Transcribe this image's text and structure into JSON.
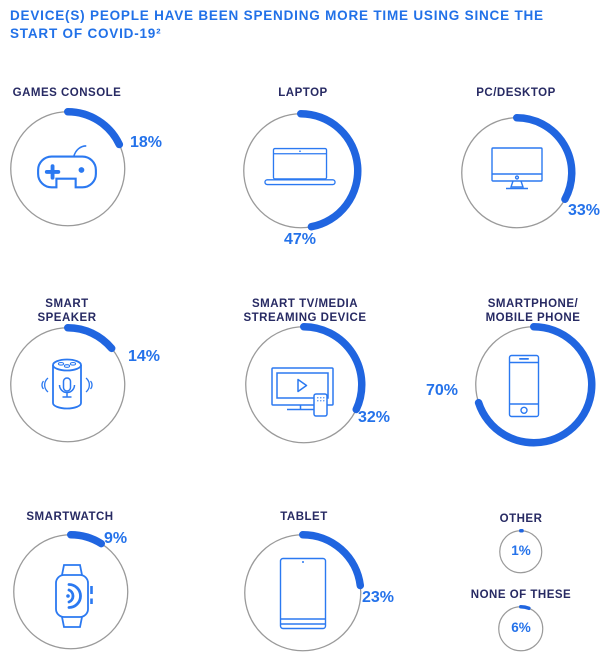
{
  "header": {
    "title": "DEVICE(S) PEOPLE HAVE BEEN SPENDING MORE TIME USING SINCE THE\nSTART OF COVID-19²"
  },
  "chart_data": {
    "type": "donut",
    "title": "DEVICE(S) PEOPLE HAVE BEEN SPENDING MORE TIME USING SINCE THE START OF COVID-19²",
    "unit": "%",
    "arc_start": "top",
    "direction": "clockwise",
    "categories": [
      "GAMES CONSOLE",
      "LAPTOP",
      "PC/DESKTOP",
      "SMART SPEAKER",
      "SMART TV/MEDIA STREAMING DEVICE",
      "SMARTPHONE/MOBILE PHONE",
      "SMARTWATCH",
      "TABLET",
      "OTHER",
      "NONE OF THESE"
    ],
    "values": [
      18,
      47,
      33,
      14,
      32,
      70,
      9,
      23,
      1,
      6
    ],
    "items": [
      {
        "label": "GAMES CONSOLE",
        "value": 18,
        "pct_label": "18%",
        "icon": "games-console-icon",
        "label_pos": "upper-right"
      },
      {
        "label": "LAPTOP",
        "value": 47,
        "pct_label": "47%",
        "icon": "laptop-icon",
        "label_pos": "bottom"
      },
      {
        "label": "PC/DESKTOP",
        "value": 33,
        "pct_label": "33%",
        "icon": "desktop-monitor-icon",
        "label_pos": "lower-right"
      },
      {
        "label": "SMART\nSPEAKER",
        "value": 14,
        "pct_label": "14%",
        "icon": "smart-speaker-icon",
        "label_pos": "upper-right"
      },
      {
        "label": "SMART TV/MEDIA\nSTREAMING DEVICE",
        "value": 32,
        "pct_label": "32%",
        "icon": "smart-tv-icon",
        "label_pos": "lower-right"
      },
      {
        "label": "SMARTPHONE/\nMOBILE PHONE",
        "value": 70,
        "pct_label": "70%",
        "icon": "smartphone-icon",
        "label_pos": "left"
      },
      {
        "label": "SMARTWATCH",
        "value": 9,
        "pct_label": "9%",
        "icon": "smartwatch-icon",
        "label_pos": "upper-right"
      },
      {
        "label": "TABLET",
        "value": 23,
        "pct_label": "23%",
        "icon": "tablet-icon",
        "label_pos": "right"
      },
      {
        "label": "OTHER",
        "value": 1,
        "pct_label": "1%",
        "icon": "",
        "label_pos": "center"
      },
      {
        "label": "NONE OF THESE",
        "value": 6,
        "pct_label": "6%",
        "icon": "",
        "label_pos": "center"
      }
    ],
    "colors": {
      "arc": "#2065e0",
      "ring": "#9a9a9a",
      "header_text": "#2171e8",
      "category_text": "#272a63",
      "percent_text": "#2472ea",
      "icon_stroke": "#2b79f1",
      "background": "#ffffff"
    }
  }
}
